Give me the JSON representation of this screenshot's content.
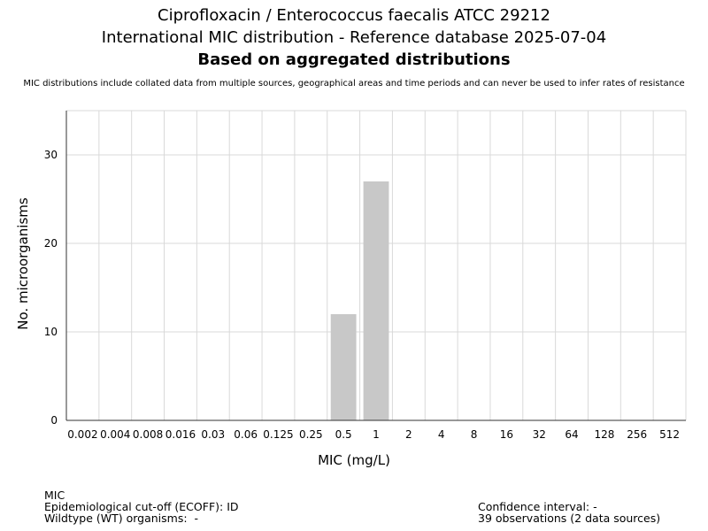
{
  "header": {
    "title_line1": "Ciprofloxacin / Enterococcus faecalis ATCC 29212",
    "title_line2": "International MIC distribution - Reference database 2025-07-04",
    "title_line3": "Based on aggregated distributions",
    "subtitle": "MIC distributions include collated data from multiple sources, geographical areas and time periods and can never be used to infer rates of resistance"
  },
  "chart_data": {
    "type": "bar",
    "categories": [
      "0.002",
      "0.004",
      "0.008",
      "0.016",
      "0.03",
      "0.06",
      "0.125",
      "0.25",
      "0.5",
      "1",
      "2",
      "4",
      "8",
      "16",
      "32",
      "64",
      "128",
      "256",
      "512"
    ],
    "values": [
      0,
      0,
      0,
      0,
      0,
      0,
      0,
      0,
      12,
      27,
      0,
      0,
      0,
      0,
      0,
      0,
      0,
      0,
      0
    ],
    "xlabel": "MIC (mg/L)",
    "ylabel": "No. microorganisms",
    "ylim": [
      0,
      35
    ],
    "yticks": [
      0,
      10,
      20,
      30
    ],
    "grid": true,
    "bar_color": "#c8c8c8",
    "grid_color": "#d9d9d9"
  },
  "footer": {
    "left_line1": "MIC",
    "left_line2": "Epidemiological cut-off (ECOFF): ID",
    "left_line3": "Wildtype (WT) organisms:  -",
    "right_line1": "Confidence interval: -",
    "right_line2": "39 observations (2 data sources)"
  }
}
